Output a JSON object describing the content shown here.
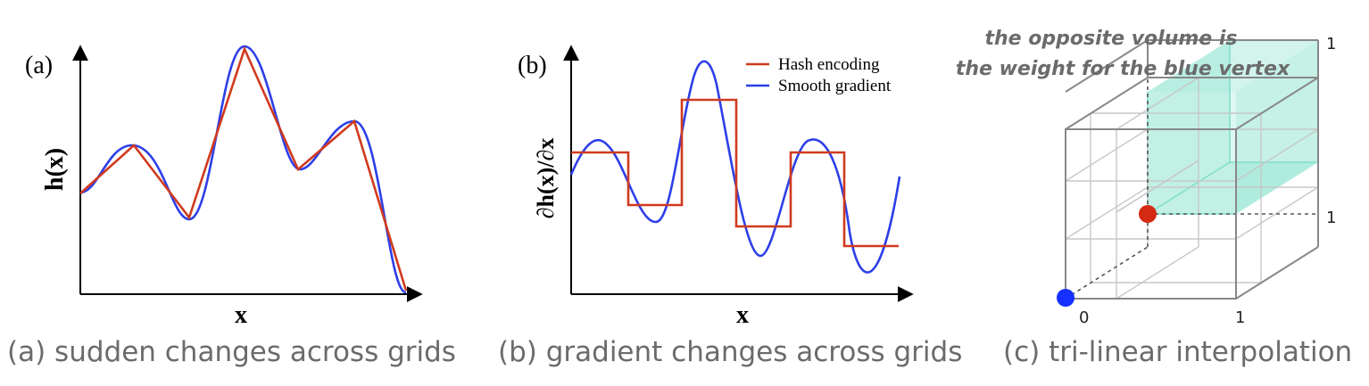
{
  "panels": {
    "a": {
      "tag": "(a)",
      "ylabel": "h(x)",
      "xlabel": "x",
      "caption": "(a) sudden changes across grids"
    },
    "b": {
      "tag": "(b)",
      "ylabel": "∂h(x)/∂x",
      "xlabel": "x",
      "caption": "(b) gradient changes across grids",
      "legend": [
        {
          "label": "Hash encoding",
          "color": "#d03a1e"
        },
        {
          "label": "Smooth gradient",
          "color": "#2d3fe8"
        }
      ]
    },
    "c": {
      "annotation_line1": "the opposite volume is",
      "annotation_line2": "the weight for the blue vertex",
      "tick_0": "0",
      "tick_1_x": "1",
      "tick_1_y": "1",
      "tick_1_z": "1",
      "caption": "(c) tri-linear interpolation",
      "colors": {
        "blue_vertex": "#1530ff",
        "red_point": "#d42a12",
        "volume": "#7fe0c8"
      }
    }
  },
  "colors": {
    "hash": "#d03a1e",
    "smooth": "#2d3fe8",
    "axis": "#000000",
    "caption": "#6b6b6b"
  }
}
